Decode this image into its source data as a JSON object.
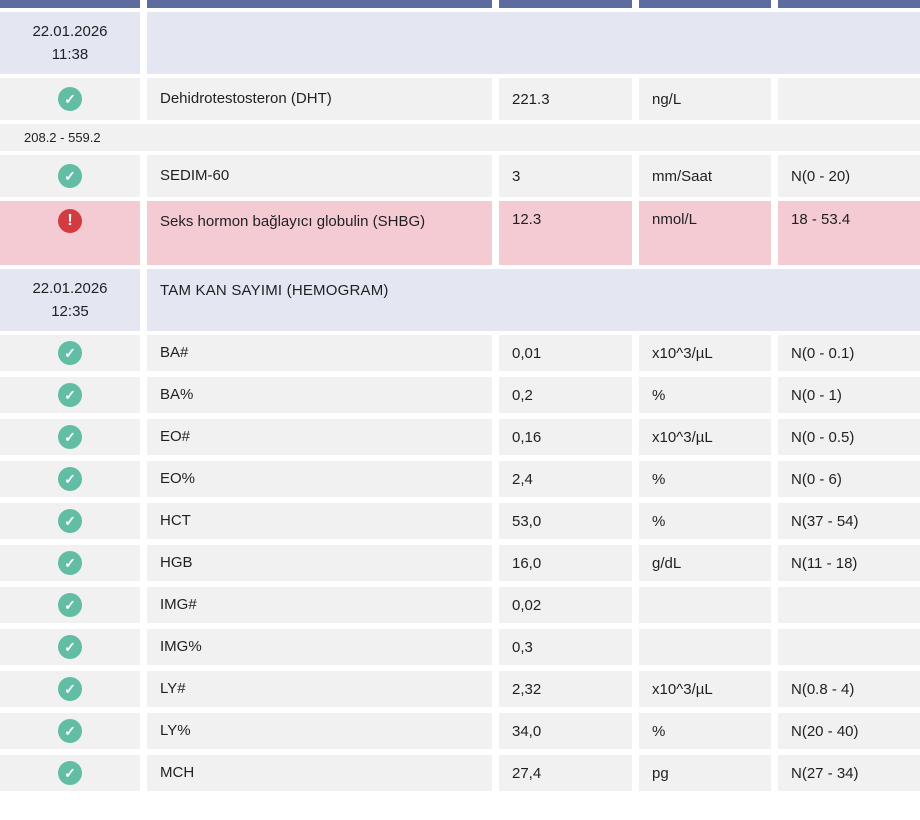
{
  "app": {
    "language": "tr",
    "description": "Laboratory results list"
  },
  "colors": {
    "header_bar": "#5d6c9e",
    "group_row_bg": "#e4e7f1",
    "row_bg": "#f1f1f2",
    "alert_row_bg": "#f5cbd3",
    "ok_icon": "#62bda4",
    "alert_icon": "#d23b40",
    "text": "#1f2023"
  },
  "icons": {
    "ok": {
      "name": "check-icon",
      "glyph": "✓"
    },
    "alert": {
      "name": "exclamation-icon",
      "glyph": "!"
    }
  },
  "table": {
    "columns": [
      "status",
      "name",
      "value",
      "unit",
      "reference"
    ],
    "rows": [
      {
        "type": "header_bar"
      },
      {
        "type": "date_group",
        "date": "22.01.2026",
        "time": "11:38",
        "label": ""
      },
      {
        "type": "result",
        "group": 1,
        "status": "ok",
        "name": "Dehidrotestosteron (DHT)",
        "value": "221.3",
        "unit": "ng/L",
        "reference": ""
      },
      {
        "type": "range",
        "text": "208.2 - 559.2"
      },
      {
        "type": "result",
        "group": 1,
        "status": "ok",
        "name": "SEDIM-60",
        "value": "3",
        "unit": "mm/Saat",
        "reference": "N(0 - 20)"
      },
      {
        "type": "result",
        "group": 1,
        "status": "alert",
        "name": "Seks hormon bağlayıcı globulin (SHBG)",
        "value": "12.3",
        "unit": "nmol/L",
        "reference": "18 - 53.4"
      },
      {
        "type": "date_group",
        "date": "22.01.2026",
        "time": "12:35",
        "label": "TAM KAN SAYIMI (HEMOGRAM)"
      },
      {
        "type": "result",
        "group": 2,
        "status": "ok",
        "name": "BA#",
        "value": "0,01",
        "unit": "x10^3/µL",
        "reference": "N(0 - 0.1)"
      },
      {
        "type": "result",
        "group": 2,
        "status": "ok",
        "name": "BA%",
        "value": "0,2",
        "unit": "%",
        "reference": "N(0 - 1)"
      },
      {
        "type": "result",
        "group": 2,
        "status": "ok",
        "name": "EO#",
        "value": "0,16",
        "unit": "x10^3/µL",
        "reference": "N(0 - 0.5)"
      },
      {
        "type": "result",
        "group": 2,
        "status": "ok",
        "name": "EO%",
        "value": "2,4",
        "unit": "%",
        "reference": "N(0 - 6)"
      },
      {
        "type": "result",
        "group": 2,
        "status": "ok",
        "name": "HCT",
        "value": "53,0",
        "unit": "%",
        "reference": "N(37 - 54)"
      },
      {
        "type": "result",
        "group": 2,
        "status": "ok",
        "name": "HGB",
        "value": "16,0",
        "unit": "g/dL",
        "reference": "N(11 - 18)"
      },
      {
        "type": "result",
        "group": 2,
        "status": "ok",
        "name": "IMG#",
        "value": "0,02",
        "unit": "",
        "reference": ""
      },
      {
        "type": "result",
        "group": 2,
        "status": "ok",
        "name": "IMG%",
        "value": "0,3",
        "unit": "",
        "reference": ""
      },
      {
        "type": "result",
        "group": 2,
        "status": "ok",
        "name": "LY#",
        "value": "2,32",
        "unit": "x10^3/µL",
        "reference": "N(0.8 - 4)"
      },
      {
        "type": "result",
        "group": 2,
        "status": "ok",
        "name": "LY%",
        "value": "34,0",
        "unit": "%",
        "reference": "N(20 - 40)"
      },
      {
        "type": "result",
        "group": 2,
        "status": "ok",
        "name": "MCH",
        "value": "27,4",
        "unit": "pg",
        "reference": "N(27 - 34)"
      }
    ]
  }
}
